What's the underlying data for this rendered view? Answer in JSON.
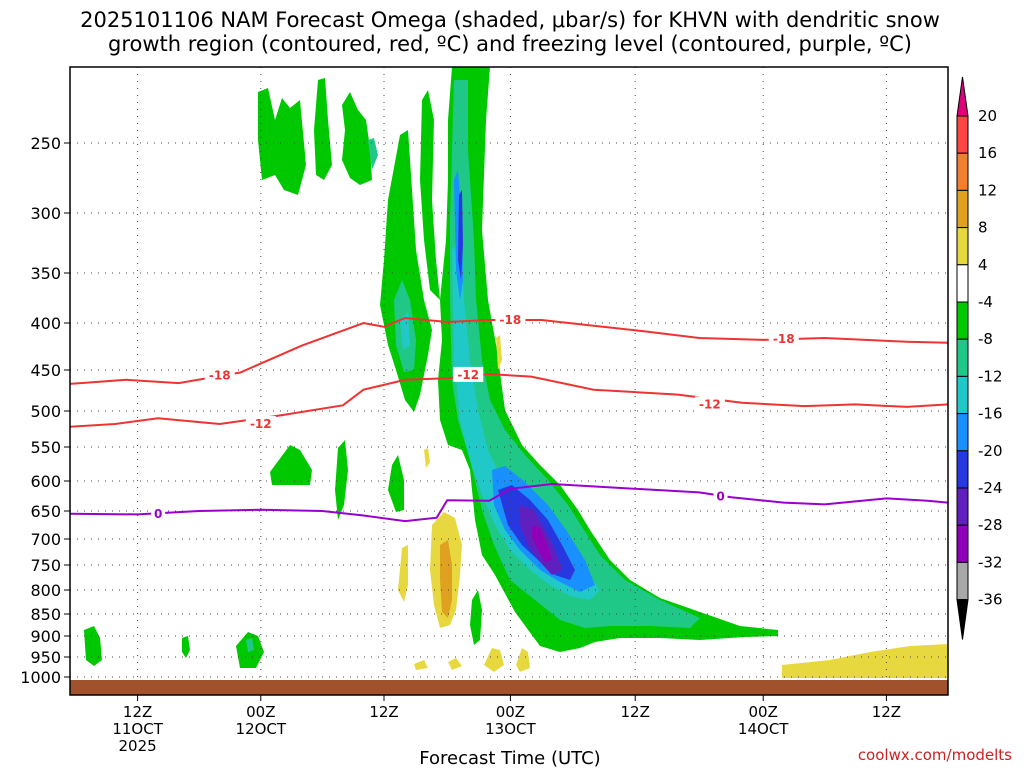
{
  "chart_data": {
    "type": "heatmap",
    "title_lines": [
      "2025101106 NAM Forecast Omega (shaded, μbar/s) for KHVN with dendritic snow",
      "growth region (contoured, red, ºC) and freezing level (contoured, purple, ºC)"
    ],
    "xlabel": "Forecast Time (UTC)",
    "credit": "coolwx.com/modelts",
    "x_ticks": [
      {
        "hour": 6,
        "lines": [
          "12Z",
          "11OCT",
          "2025"
        ]
      },
      {
        "hour": 18,
        "lines": [
          "00Z",
          "12OCT"
        ]
      },
      {
        "hour": 30,
        "lines": [
          "12Z"
        ]
      },
      {
        "hour": 42,
        "lines": [
          "00Z",
          "13OCT"
        ]
      },
      {
        "hour": 54,
        "lines": [
          "12Z"
        ]
      },
      {
        "hour": 66,
        "lines": [
          "00Z",
          "14OCT"
        ]
      },
      {
        "hour": 78,
        "lines": [
          "12Z"
        ]
      }
    ],
    "x_range_hours": [
      0,
      84
    ],
    "y_ticks": [
      "250",
      "300",
      "350",
      "400",
      "450",
      "500",
      "550",
      "600",
      "650",
      "700",
      "750",
      "800",
      "850",
      "900",
      "950",
      "1000"
    ],
    "y_range_hpa": [
      200,
      1020
    ],
    "colorbar": {
      "levels": [
        "20",
        "16",
        "12",
        "8",
        "4",
        "-4",
        "-8",
        "-12",
        "-16",
        "-20",
        "-24",
        "-28",
        "-32",
        "-36"
      ],
      "colors": [
        "#ff4444",
        "#f08030",
        "#e0a020",
        "#e8d840",
        "#ffffff",
        "#00c800",
        "#20c888",
        "#20c8c8",
        "#1890ff",
        "#2838e0",
        "#6020c0",
        "#9000b8",
        "#a8a8a8"
      ],
      "top_color": "#e0007a",
      "bottom_color": "#000000"
    },
    "contours": [
      {
        "name": "-18",
        "color": "#ee3333",
        "points": [
          [
            0,
            467
          ],
          [
            5,
            462
          ],
          [
            10,
            466
          ],
          [
            16,
            453
          ],
          [
            22,
            424
          ],
          [
            28,
            400
          ],
          [
            30,
            404
          ],
          [
            32,
            395
          ],
          [
            36,
            399
          ],
          [
            40,
            397
          ],
          [
            45,
            397
          ],
          [
            50,
            403
          ],
          [
            55,
            409
          ],
          [
            60,
            416
          ],
          [
            66,
            418
          ],
          [
            72,
            416
          ],
          [
            80,
            420
          ],
          [
            84,
            421
          ]
        ],
        "label_at": [
          [
            14,
            457
          ],
          [
            42,
            397
          ],
          [
            68,
            417
          ]
        ]
      },
      {
        "name": "-12",
        "color": "#ee3333",
        "points": [
          [
            0,
            522
          ],
          [
            4,
            518
          ],
          [
            8,
            510
          ],
          [
            14,
            518
          ],
          [
            20,
            506
          ],
          [
            26,
            493
          ],
          [
            28,
            474
          ],
          [
            32,
            462
          ],
          [
            36,
            460
          ],
          [
            40,
            455
          ],
          [
            44,
            458
          ],
          [
            50,
            474
          ],
          [
            58,
            480
          ],
          [
            64,
            490
          ],
          [
            70,
            494
          ],
          [
            75,
            492
          ],
          [
            80,
            495
          ],
          [
            84,
            492
          ]
        ],
        "label_at": [
          [
            18,
            518
          ],
          [
            38,
            456
          ],
          [
            61,
            492
          ]
        ]
      },
      {
        "name": "0",
        "color": "#9a00cc",
        "points": [
          [
            0,
            655
          ],
          [
            6,
            656
          ],
          [
            12,
            650
          ],
          [
            18,
            648
          ],
          [
            24,
            650
          ],
          [
            28,
            658
          ],
          [
            32,
            668
          ],
          [
            35,
            662
          ],
          [
            36,
            632
          ],
          [
            40,
            633
          ],
          [
            42,
            613
          ],
          [
            46,
            605
          ],
          [
            52,
            611
          ],
          [
            60,
            619
          ],
          [
            63,
            627
          ],
          [
            68,
            636
          ],
          [
            72,
            639
          ],
          [
            78,
            629
          ],
          [
            82,
            633
          ],
          [
            84,
            636
          ]
        ],
        "label_at": [
          [
            8,
            655
          ],
          [
            62,
            626
          ]
        ]
      }
    ],
    "omega_blobs": [
      {
        "value": "-8",
        "hour": 37.5,
        "hpa": 520,
        "note": "main ascent plume aloft, 22Z-00Z 12-13 Oct"
      },
      {
        "value": "-28",
        "hour": 44,
        "hpa": 705,
        "note": "strongest ascent, about -28 microbar/s near 00Z 13 Oct"
      },
      {
        "value": "-8",
        "hour": 50,
        "hpa": 870,
        "note": "low-level ascent tail to 06Z 14 Oct"
      },
      {
        "value": "4",
        "hour": 36.5,
        "hpa": 750,
        "note": "weak subsidence 4-8 microbar/s"
      },
      {
        "value": "4",
        "hour": 80,
        "hpa": 960,
        "note": "near-surface subsidence late period"
      },
      {
        "value": "-4",
        "hour": 22,
        "hpa": 260,
        "note": "upper-level ascent patches"
      }
    ]
  }
}
